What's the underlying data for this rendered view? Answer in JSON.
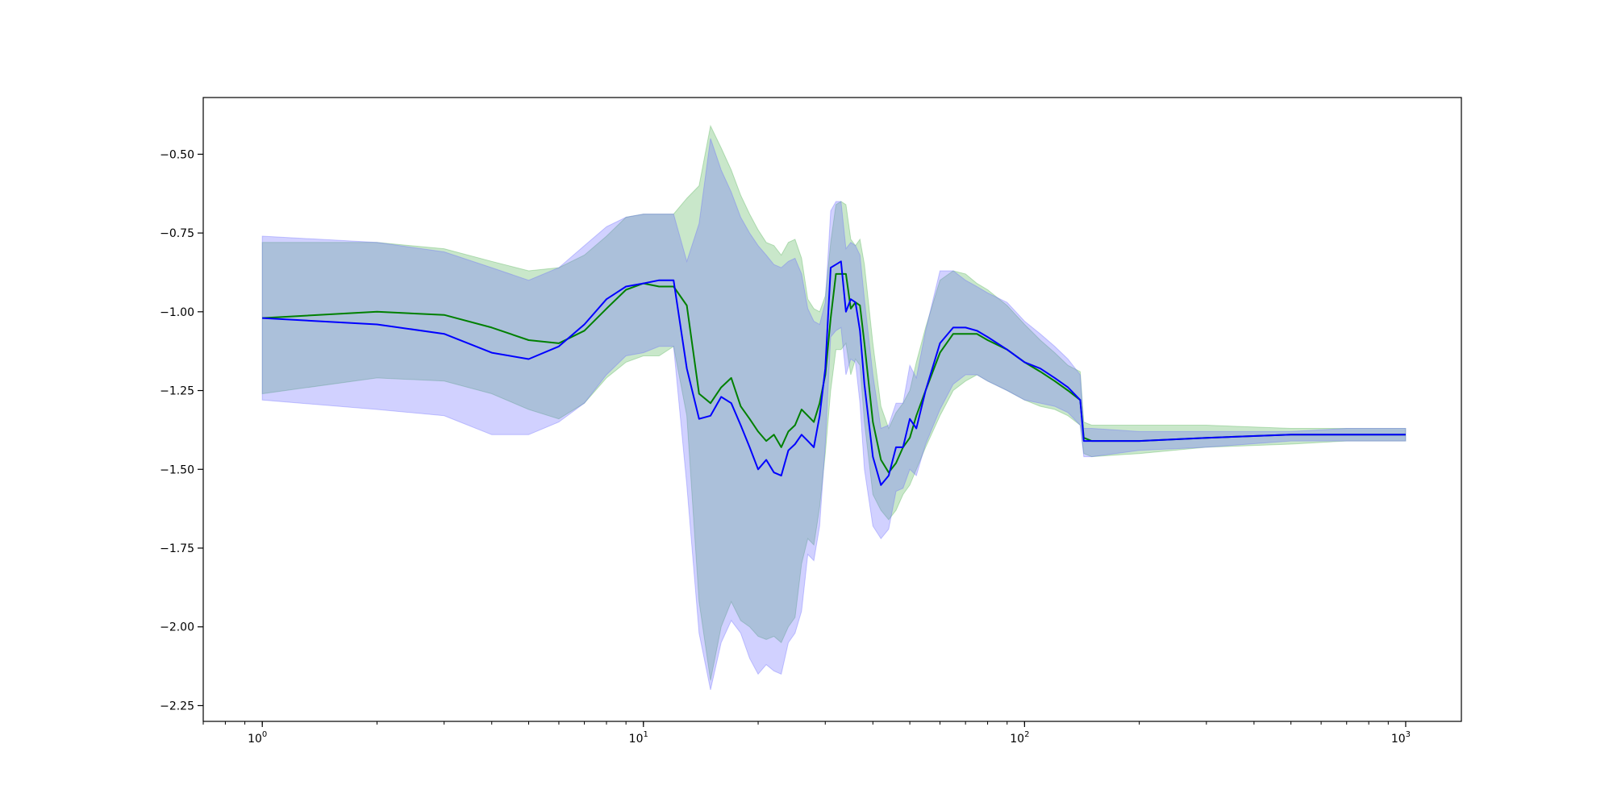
{
  "chart_data": {
    "type": "line",
    "title": "",
    "xlabel": "",
    "ylabel": "",
    "xscale": "log",
    "xlim": [
      0.7,
      1400
    ],
    "ylim": [
      -2.3,
      -0.32
    ],
    "grid": false,
    "legend": "none",
    "x_ticks": [
      {
        "value": 1,
        "base": "10",
        "exp": "0"
      },
      {
        "value": 10,
        "base": "10",
        "exp": "1"
      },
      {
        "value": 100,
        "base": "10",
        "exp": "2"
      },
      {
        "value": 1000,
        "base": "10",
        "exp": "3"
      }
    ],
    "y_ticks": [
      {
        "value": -0.5,
        "label": "−0.50"
      },
      {
        "value": -0.75,
        "label": "−0.75"
      },
      {
        "value": -1.0,
        "label": "−1.00"
      },
      {
        "value": -1.25,
        "label": "−1.25"
      },
      {
        "value": -1.5,
        "label": "−1.50"
      },
      {
        "value": -1.75,
        "label": "−1.75"
      },
      {
        "value": -2.0,
        "label": "−2.00"
      },
      {
        "value": -2.25,
        "label": "−2.25"
      }
    ],
    "series": [
      {
        "color": "#008000",
        "band_color": "#4caf50",
        "points": [
          [
            1,
            -1.02,
            -0.78,
            -1.26
          ],
          [
            2,
            -1.0,
            -0.78,
            -1.21
          ],
          [
            3,
            -1.01,
            -0.8,
            -1.22
          ],
          [
            4,
            -1.05,
            -0.84,
            -1.26
          ],
          [
            5,
            -1.09,
            -0.87,
            -1.31
          ],
          [
            6,
            -1.1,
            -0.86,
            -1.34
          ],
          [
            7,
            -1.06,
            -0.82,
            -1.29
          ],
          [
            8,
            -0.99,
            -0.76,
            -1.21
          ],
          [
            9,
            -0.93,
            -0.7,
            -1.16
          ],
          [
            10,
            -0.91,
            -0.69,
            -1.14
          ],
          [
            11,
            -0.92,
            -0.69,
            -1.14
          ],
          [
            12,
            -0.92,
            -0.69,
            -1.11
          ],
          [
            13,
            -0.98,
            -0.64,
            -1.33
          ],
          [
            14,
            -1.26,
            -0.6,
            -1.92
          ],
          [
            15,
            -1.29,
            -0.41,
            -2.17
          ],
          [
            16,
            -1.24,
            -0.48,
            -2.0
          ],
          [
            17,
            -1.21,
            -0.55,
            -1.92
          ],
          [
            18,
            -1.3,
            -0.63,
            -1.98
          ],
          [
            19,
            -1.34,
            -0.69,
            -2.0
          ],
          [
            20,
            -1.38,
            -0.74,
            -2.03
          ],
          [
            21,
            -1.41,
            -0.78,
            -2.04
          ],
          [
            22,
            -1.39,
            -0.79,
            -2.03
          ],
          [
            23,
            -1.43,
            -0.82,
            -2.05
          ],
          [
            24,
            -1.38,
            -0.78,
            -2.0
          ],
          [
            25,
            -1.36,
            -0.77,
            -1.97
          ],
          [
            26,
            -1.31,
            -0.83,
            -1.8
          ],
          [
            27,
            -1.33,
            -0.96,
            -1.72
          ],
          [
            28,
            -1.35,
            -0.99,
            -1.74
          ],
          [
            29,
            -1.29,
            -1.0,
            -1.62
          ],
          [
            30,
            -1.2,
            -0.95,
            -1.45
          ],
          [
            31,
            -1.02,
            -0.78,
            -1.25
          ],
          [
            32,
            -0.88,
            -0.66,
            -1.12
          ],
          [
            33,
            -0.88,
            -0.65,
            -1.12
          ],
          [
            34,
            -0.88,
            -0.66,
            -1.1
          ],
          [
            35,
            -0.99,
            -0.77,
            -1.2
          ],
          [
            36,
            -0.97,
            -0.79,
            -1.15
          ],
          [
            37,
            -0.98,
            -0.77,
            -1.17
          ],
          [
            38,
            -1.1,
            -0.85,
            -1.35
          ],
          [
            40,
            -1.35,
            -1.1,
            -1.58
          ],
          [
            42,
            -1.47,
            -1.3,
            -1.63
          ],
          [
            44,
            -1.51,
            -1.37,
            -1.66
          ],
          [
            46,
            -1.48,
            -1.32,
            -1.63
          ],
          [
            48,
            -1.43,
            -1.29,
            -1.58
          ],
          [
            50,
            -1.4,
            -1.25,
            -1.55
          ],
          [
            52,
            -1.33,
            -1.16,
            -1.5
          ],
          [
            55,
            -1.25,
            -1.05,
            -1.43
          ],
          [
            60,
            -1.13,
            -0.9,
            -1.33
          ],
          [
            65,
            -1.07,
            -0.87,
            -1.25
          ],
          [
            70,
            -1.07,
            -0.88,
            -1.22
          ],
          [
            75,
            -1.07,
            -0.91,
            -1.2
          ],
          [
            80,
            -1.09,
            -0.93,
            -1.22
          ],
          [
            90,
            -1.12,
            -0.98,
            -1.25
          ],
          [
            100,
            -1.16,
            -1.04,
            -1.28
          ],
          [
            110,
            -1.19,
            -1.09,
            -1.3
          ],
          [
            120,
            -1.22,
            -1.13,
            -1.31
          ],
          [
            130,
            -1.25,
            -1.17,
            -1.33
          ],
          [
            140,
            -1.28,
            -1.19,
            -1.36
          ],
          [
            143,
            -1.4,
            -1.35,
            -1.45
          ],
          [
            150,
            -1.41,
            -1.36,
            -1.46
          ],
          [
            200,
            -1.41,
            -1.36,
            -1.45
          ],
          [
            300,
            -1.4,
            -1.36,
            -1.43
          ],
          [
            500,
            -1.39,
            -1.37,
            -1.42
          ],
          [
            700,
            -1.39,
            -1.37,
            -1.41
          ],
          [
            1000,
            -1.39,
            -1.37,
            -1.41
          ]
        ]
      },
      {
        "color": "#0000ff",
        "band_color": "#6666ff",
        "points": [
          [
            1,
            -1.02,
            -0.76,
            -1.28
          ],
          [
            2,
            -1.04,
            -0.78,
            -1.31
          ],
          [
            3,
            -1.07,
            -0.81,
            -1.33
          ],
          [
            4,
            -1.13,
            -0.86,
            -1.39
          ],
          [
            5,
            -1.15,
            -0.9,
            -1.39
          ],
          [
            6,
            -1.11,
            -0.86,
            -1.35
          ],
          [
            7,
            -1.04,
            -0.79,
            -1.29
          ],
          [
            8,
            -0.96,
            -0.73,
            -1.2
          ],
          [
            9,
            -0.92,
            -0.7,
            -1.14
          ],
          [
            10,
            -0.91,
            -0.69,
            -1.13
          ],
          [
            11,
            -0.9,
            -0.69,
            -1.11
          ],
          [
            12,
            -0.9,
            -0.69,
            -1.11
          ],
          [
            13,
            -1.18,
            -0.84,
            -1.55
          ],
          [
            14,
            -1.34,
            -0.72,
            -2.02
          ],
          [
            15,
            -1.33,
            -0.45,
            -2.2
          ],
          [
            16,
            -1.27,
            -0.55,
            -2.05
          ],
          [
            17,
            -1.29,
            -0.62,
            -1.98
          ],
          [
            18,
            -1.36,
            -0.7,
            -2.02
          ],
          [
            19,
            -1.43,
            -0.75,
            -2.1
          ],
          [
            20,
            -1.5,
            -0.79,
            -2.15
          ],
          [
            21,
            -1.47,
            -0.82,
            -2.12
          ],
          [
            22,
            -1.51,
            -0.85,
            -2.14
          ],
          [
            23,
            -1.52,
            -0.86,
            -2.15
          ],
          [
            24,
            -1.44,
            -0.84,
            -2.05
          ],
          [
            25,
            -1.42,
            -0.83,
            -2.02
          ],
          [
            26,
            -1.39,
            -0.88,
            -1.95
          ],
          [
            27,
            -1.41,
            -0.99,
            -1.77
          ],
          [
            28,
            -1.43,
            -1.03,
            -1.79
          ],
          [
            29,
            -1.33,
            -1.04,
            -1.68
          ],
          [
            30,
            -1.18,
            -0.97,
            -1.42
          ],
          [
            31,
            -0.86,
            -0.68,
            -1.08
          ],
          [
            32,
            -0.85,
            -0.65,
            -1.06
          ],
          [
            33,
            -0.84,
            -0.65,
            -1.05
          ],
          [
            34,
            -1.0,
            -0.8,
            -1.2
          ],
          [
            35,
            -0.96,
            -0.78,
            -1.15
          ],
          [
            36,
            -0.97,
            -0.79,
            -1.16
          ],
          [
            37,
            -1.06,
            -0.82,
            -1.29
          ],
          [
            38,
            -1.23,
            -0.96,
            -1.5
          ],
          [
            40,
            -1.46,
            -1.2,
            -1.68
          ],
          [
            42,
            -1.55,
            -1.37,
            -1.72
          ],
          [
            44,
            -1.52,
            -1.36,
            -1.69
          ],
          [
            46,
            -1.43,
            -1.29,
            -1.57
          ],
          [
            48,
            -1.43,
            -1.29,
            -1.56
          ],
          [
            50,
            -1.34,
            -1.17,
            -1.5
          ],
          [
            52,
            -1.37,
            -1.21,
            -1.52
          ],
          [
            55,
            -1.25,
            -1.06,
            -1.42
          ],
          [
            60,
            -1.1,
            -0.87,
            -1.31
          ],
          [
            65,
            -1.05,
            -0.87,
            -1.23
          ],
          [
            70,
            -1.05,
            -0.9,
            -1.2
          ],
          [
            75,
            -1.06,
            -0.92,
            -1.2
          ],
          [
            80,
            -1.08,
            -0.94,
            -1.22
          ],
          [
            90,
            -1.12,
            -0.97,
            -1.25
          ],
          [
            100,
            -1.16,
            -1.03,
            -1.28
          ],
          [
            110,
            -1.18,
            -1.07,
            -1.29
          ],
          [
            120,
            -1.21,
            -1.11,
            -1.3
          ],
          [
            130,
            -1.24,
            -1.15,
            -1.32
          ],
          [
            140,
            -1.28,
            -1.2,
            -1.36
          ],
          [
            143,
            -1.41,
            -1.37,
            -1.46
          ],
          [
            150,
            -1.41,
            -1.37,
            -1.46
          ],
          [
            200,
            -1.41,
            -1.38,
            -1.44
          ],
          [
            300,
            -1.4,
            -1.38,
            -1.43
          ],
          [
            500,
            -1.39,
            -1.38,
            -1.41
          ],
          [
            700,
            -1.39,
            -1.37,
            -1.41
          ],
          [
            1000,
            -1.39,
            -1.37,
            -1.41
          ]
        ]
      }
    ]
  }
}
